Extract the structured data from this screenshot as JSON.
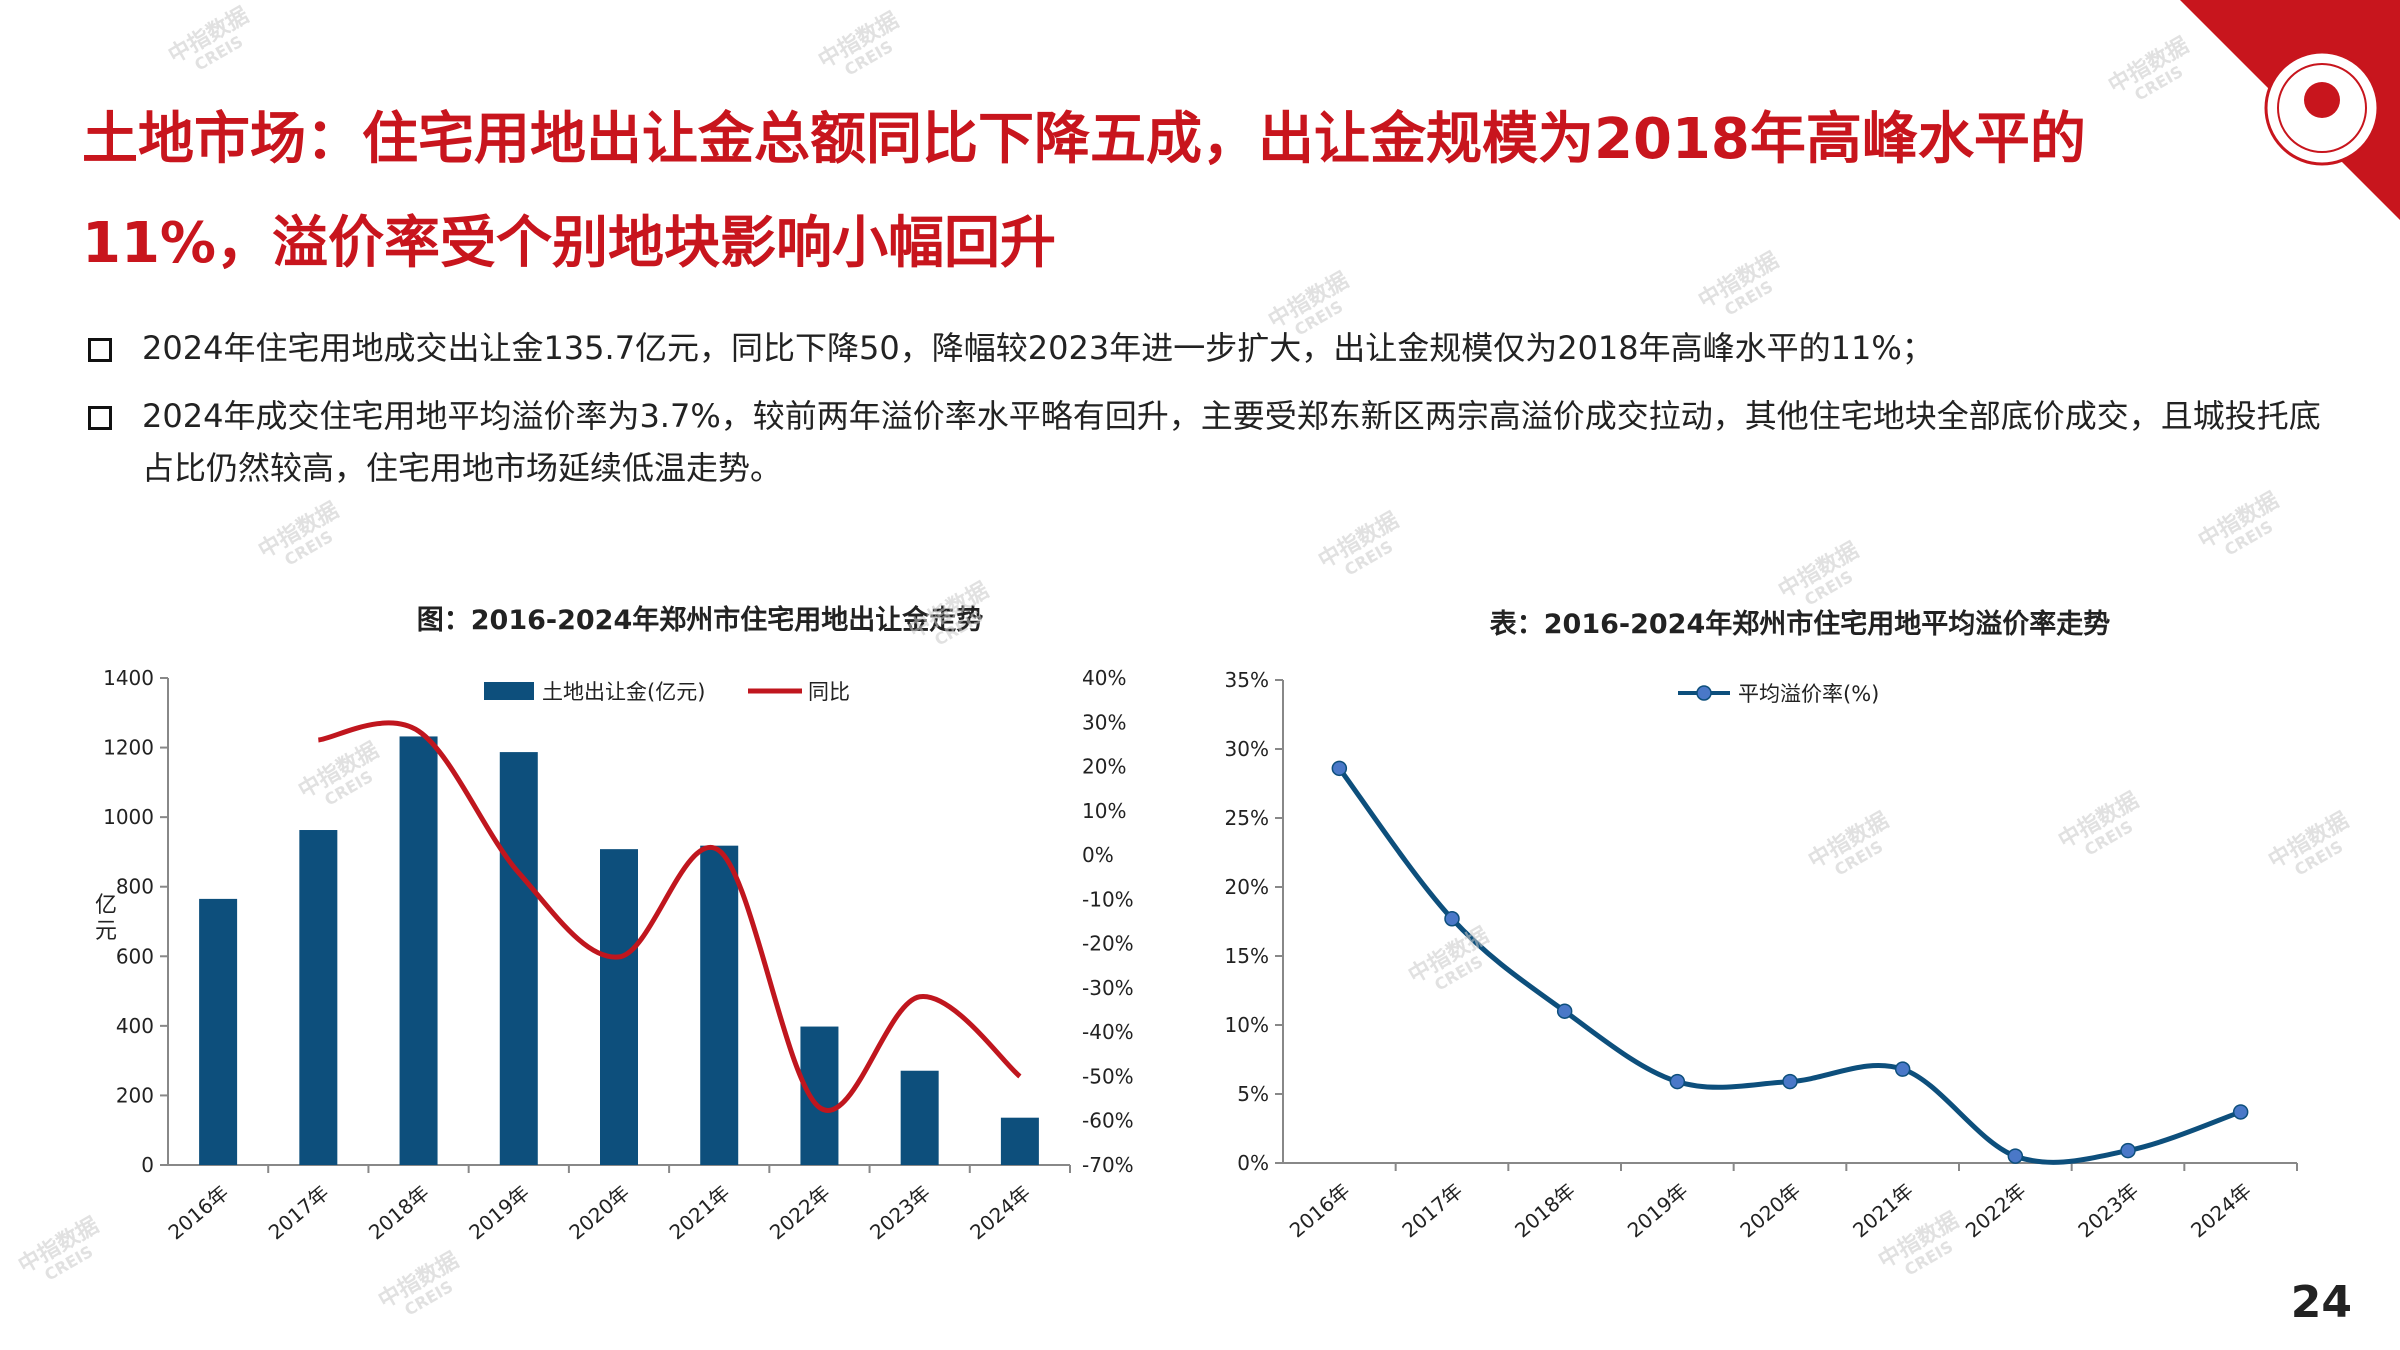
{
  "page": {
    "title": "土地市场：住宅用地出让金总额同比下降五成，出让金规模为2018年高峰水平的11%，溢价率受个别地块影响小幅回升",
    "bullets": [
      "2024年住宅用地成交出让金135.7亿元，同比下降50，降幅较2023年进一步扩大，出让金规模仅为2018年高峰水平的11%；",
      "2024年成交住宅用地平均溢价率为3.7%，较前两年溢价率水平略有回升，主要受郑东新区两宗高溢价成交拉动，其他住宅地块全部底价成交，且城投托底占比仍然较高，住宅用地市场延续低温走势。"
    ],
    "page_number": "24",
    "watermark": {
      "cn": "中指数据",
      "en": "CREIS"
    },
    "brand_color": "#c8151d"
  },
  "chart_data": [
    {
      "type": "bar",
      "title": "图：2016-2024年郑州市住宅用地出让金走势",
      "categories": [
        "2016年",
        "2017年",
        "2018年",
        "2019年",
        "2020年",
        "2021年",
        "2022年",
        "2023年",
        "2024年"
      ],
      "ylabel": "亿元",
      "ylim": [
        0,
        1400
      ],
      "yticks": [
        "0",
        "200",
        "400",
        "600",
        "800",
        "1000",
        "1200",
        "1400"
      ],
      "y2lim": [
        -70,
        40
      ],
      "y2ticks": [
        "-70%",
        "-60%",
        "-50%",
        "-40%",
        "-30%",
        "-20%",
        "-10%",
        "0%",
        "10%",
        "20%",
        "30%",
        "40%"
      ],
      "legend_position": "top",
      "series": [
        {
          "name": "土地出让金(亿元)",
          "type": "bar",
          "axis": "left",
          "color": "#0d4f7c",
          "values": [
            765,
            963,
            1232,
            1187,
            908,
            918,
            398,
            271,
            136
          ]
        },
        {
          "name": "同比",
          "type": "line",
          "axis": "right",
          "color": "#c0161e",
          "values": [
            null,
            26,
            28,
            -4,
            -23,
            1,
            -57,
            -32,
            -50
          ]
        }
      ]
    },
    {
      "type": "line",
      "title": "表：2016-2024年郑州市住宅用地平均溢价率走势",
      "categories": [
        "2016年",
        "2017年",
        "2018年",
        "2019年",
        "2020年",
        "2021年",
        "2022年",
        "2023年",
        "2024年"
      ],
      "ylim": [
        0,
        35
      ],
      "yticks": [
        "0%",
        "5%",
        "10%",
        "15%",
        "20%",
        "25%",
        "30%",
        "35%"
      ],
      "legend_position": "top",
      "series": [
        {
          "name": "平均溢价率(%)",
          "color": "#0d4f7c",
          "marker_color": "#4a78c8",
          "values": [
            28.6,
            17.7,
            11.0,
            5.9,
            5.9,
            6.8,
            0.5,
            0.9,
            3.7
          ]
        }
      ]
    }
  ]
}
